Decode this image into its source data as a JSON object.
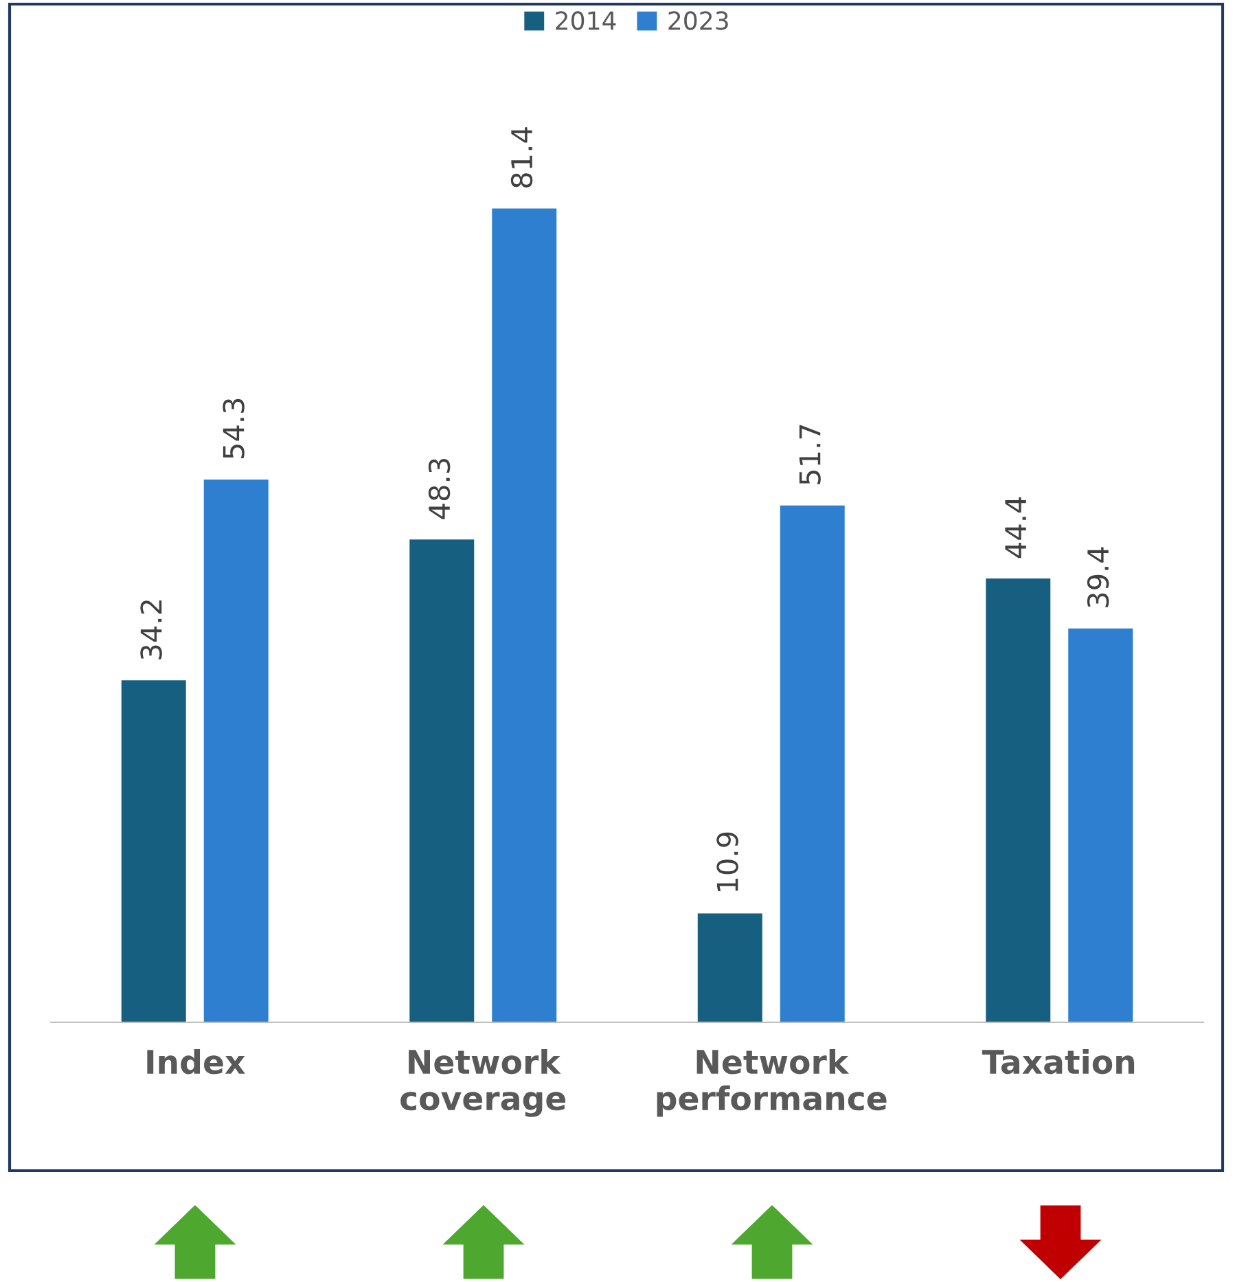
{
  "chart_data": {
    "type": "bar",
    "categories": [
      "Index",
      "Network\ncoverage",
      "Network\nperformance",
      "Taxation"
    ],
    "series": [
      {
        "name": "2014",
        "color": "#175f80",
        "values": [
          34.2,
          48.3,
          10.9,
          44.4
        ]
      },
      {
        "name": "2023",
        "color": "#2e7fd0",
        "values": [
          54.3,
          81.4,
          51.7,
          39.4
        ]
      }
    ],
    "data_labels": true,
    "legend": "top",
    "grid": false,
    "tick_labels": "x"
  }
}
